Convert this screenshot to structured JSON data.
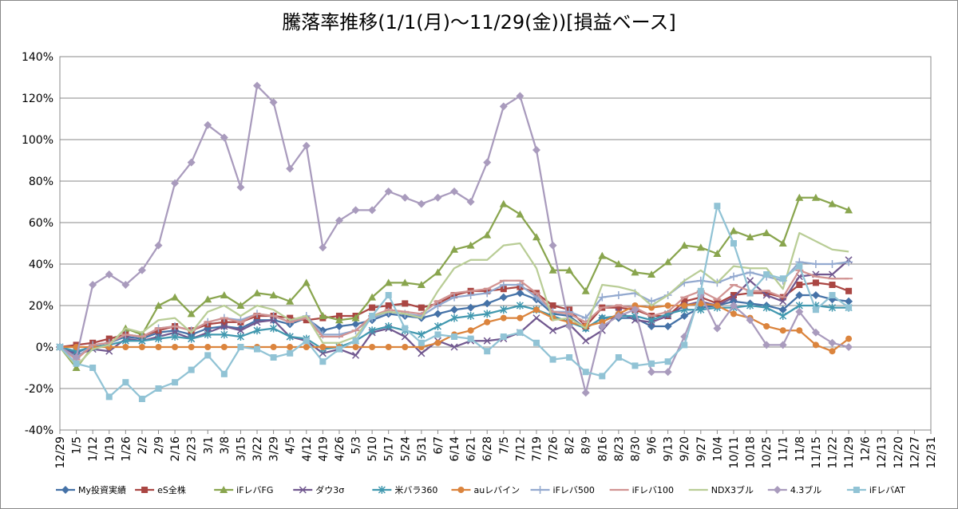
{
  "chart_data": {
    "type": "line",
    "title": "騰落率推移(1/1(月)～11/29(金))[損益ベース]",
    "categories": [
      "12/29",
      "1/5",
      "1/12",
      "1/19",
      "1/26",
      "2/2",
      "2/9",
      "2/16",
      "2/23",
      "3/1",
      "3/8",
      "3/15",
      "3/22",
      "3/29",
      "4/5",
      "4/12",
      "4/19",
      "4/26",
      "5/3",
      "5/10",
      "5/17",
      "5/24",
      "5/31",
      "6/7",
      "6/14",
      "6/21",
      "6/28",
      "7/5",
      "7/12",
      "7/19",
      "7/26",
      "8/2",
      "8/9",
      "8/16",
      "8/23",
      "8/30",
      "9/6",
      "9/13",
      "9/20",
      "9/27",
      "10/4",
      "10/11",
      "10/18",
      "10/25",
      "11/1",
      "11/8",
      "11/15",
      "11/22",
      "11/29",
      "12/6",
      "12/13",
      "12/20",
      "12/27",
      "12/31"
    ],
    "ylim": [
      -40,
      140
    ],
    "yticks": [
      {
        "value": -40,
        "label": "-40%"
      },
      {
        "value": -20,
        "label": "-20%"
      },
      {
        "value": 0,
        "label": "0%"
      },
      {
        "value": 20,
        "label": "20%"
      },
      {
        "value": 40,
        "label": "40%"
      },
      {
        "value": 60,
        "label": "60%"
      },
      {
        "value": 80,
        "label": "80%"
      },
      {
        "value": 100,
        "label": "100%"
      },
      {
        "value": 120,
        "label": "120%"
      },
      {
        "value": 140,
        "label": "140%"
      }
    ],
    "grid": true,
    "legend": "bottom",
    "series": [
      {
        "name": "My投資実績",
        "color": "#4572A7",
        "marker": "diamond",
        "values": [
          0,
          -3,
          1,
          2,
          5,
          4,
          7,
          8,
          6,
          9,
          10,
          9,
          13,
          13,
          11,
          14,
          8,
          10,
          11,
          13,
          16,
          15,
          14,
          16,
          18,
          19,
          21,
          24,
          26,
          23,
          16,
          15,
          9,
          14,
          14,
          14,
          10,
          10,
          15,
          19,
          20,
          22,
          21,
          20,
          18,
          25,
          25,
          23,
          22,
          null,
          null,
          null,
          null,
          null
        ]
      },
      {
        "name": "eS全株",
        "color": "#AA4643",
        "marker": "square",
        "values": [
          0,
          1,
          2,
          4,
          6,
          5,
          8,
          10,
          8,
          11,
          12,
          12,
          15,
          15,
          14,
          13,
          14,
          15,
          15,
          19,
          20,
          21,
          19,
          21,
          25,
          27,
          27,
          28,
          29,
          26,
          20,
          18,
          10,
          19,
          19,
          18,
          15,
          15,
          22,
          24,
          21,
          25,
          26,
          26,
          24,
          30,
          31,
          30,
          27,
          null,
          null,
          null,
          null,
          null
        ]
      },
      {
        "name": "iFレバFG",
        "color": "#89A54E",
        "marker": "triangle",
        "values": [
          0,
          -10,
          0,
          1,
          9,
          6,
          20,
          24,
          16,
          23,
          25,
          20,
          26,
          25,
          22,
          31,
          15,
          13,
          14,
          24,
          31,
          31,
          30,
          36,
          47,
          49,
          54,
          69,
          64,
          53,
          37,
          37,
          27,
          44,
          40,
          36,
          35,
          41,
          49,
          48,
          45,
          56,
          53,
          55,
          50,
          72,
          72,
          69,
          66,
          null,
          null,
          null,
          null,
          null
        ]
      },
      {
        "name": "ダウ3σ",
        "color": "#71588F",
        "marker": "x",
        "values": [
          0,
          -4,
          -1,
          -2,
          4,
          3,
          5,
          7,
          4,
          7,
          10,
          8,
          12,
          13,
          5,
          3,
          -3,
          -1,
          -4,
          7,
          9,
          5,
          -3,
          3,
          0,
          3,
          3,
          4,
          7,
          14,
          8,
          11,
          3,
          8,
          17,
          13,
          12,
          15,
          20,
          22,
          20,
          24,
          32,
          25,
          22,
          34,
          35,
          35,
          42,
          null,
          null,
          null,
          null,
          null
        ]
      },
      {
        "name": "米バラ360",
        "color": "#4198AF",
        "marker": "star",
        "values": [
          0,
          -2,
          0,
          1,
          3,
          3,
          4,
          5,
          4,
          6,
          6,
          5,
          8,
          9,
          5,
          4,
          -1,
          0,
          3,
          8,
          10,
          8,
          6,
          10,
          14,
          15,
          16,
          18,
          20,
          18,
          15,
          12,
          9,
          14,
          15,
          15,
          13,
          16,
          18,
          18,
          19,
          19,
          20,
          19,
          15,
          20,
          20,
          19,
          19,
          null,
          null,
          null,
          null,
          null
        ]
      },
      {
        "name": "auレバイン",
        "color": "#DB843D",
        "marker": "circle",
        "values": [
          0,
          0,
          0,
          0,
          0,
          0,
          0,
          0,
          0,
          0,
          0,
          0,
          0,
          0,
          0,
          0,
          0,
          0,
          0,
          0,
          0,
          0,
          0,
          2,
          6,
          8,
          12,
          14,
          14,
          18,
          14,
          12,
          10,
          12,
          16,
          20,
          19,
          20,
          20,
          21,
          20,
          16,
          14,
          10,
          8,
          8,
          1,
          -2,
          4,
          null,
          null,
          null,
          null,
          null
        ]
      },
      {
        "name": "iFレバ500",
        "color": "#93A9CF",
        "marker": "plus",
        "values": [
          0,
          -5,
          1,
          2,
          6,
          5,
          9,
          10,
          8,
          12,
          14,
          13,
          16,
          15,
          12,
          15,
          6,
          6,
          8,
          14,
          17,
          16,
          15,
          20,
          24,
          25,
          26,
          30,
          30,
          24,
          17,
          17,
          14,
          24,
          25,
          26,
          22,
          25,
          31,
          32,
          31,
          34,
          36,
          34,
          32,
          41,
          40,
          40,
          41,
          null,
          null,
          null,
          null,
          null
        ]
      },
      {
        "name": "iFレバ100",
        "color": "#D19392",
        "marker": "dash",
        "values": [
          0,
          -6,
          1,
          2,
          6,
          5,
          9,
          10,
          8,
          12,
          14,
          12,
          16,
          15,
          12,
          14,
          5,
          5,
          8,
          15,
          18,
          17,
          16,
          22,
          26,
          27,
          28,
          32,
          32,
          26,
          17,
          16,
          12,
          19,
          20,
          19,
          15,
          17,
          24,
          27,
          23,
          30,
          27,
          27,
          24,
          37,
          34,
          33,
          33,
          null,
          null,
          null,
          null,
          null
        ]
      },
      {
        "name": "NDX3ブル",
        "color": "#B9CD96",
        "marker": "none",
        "values": [
          0,
          -9,
          -1,
          1,
          9,
          7,
          13,
          14,
          7,
          17,
          20,
          15,
          20,
          18,
          13,
          15,
          2,
          2,
          5,
          15,
          17,
          16,
          14,
          27,
          38,
          42,
          42,
          49,
          50,
          38,
          13,
          14,
          9,
          30,
          29,
          27,
          20,
          25,
          32,
          37,
          31,
          39,
          38,
          38,
          28,
          55,
          51,
          47,
          46,
          null,
          null,
          null,
          null,
          null
        ]
      },
      {
        "name": "4.3ブル",
        "color": "#A99BBD",
        "marker": "diamond",
        "values": [
          0,
          -5,
          30,
          35,
          30,
          37,
          49,
          79,
          89,
          107,
          101,
          77,
          126,
          118,
          86,
          97,
          48,
          61,
          66,
          66,
          75,
          72,
          69,
          72,
          75,
          70,
          89,
          116,
          121,
          95,
          49,
          10,
          -22,
          10,
          15,
          18,
          -12,
          -12,
          5,
          25,
          9,
          20,
          13,
          1,
          1,
          17,
          7,
          2,
          0,
          null,
          null,
          null,
          null,
          null
        ]
      },
      {
        "name": "iFレバAT",
        "color": "#91C3D5",
        "marker": "square",
        "values": [
          0,
          -8,
          -10,
          -24,
          -17,
          -25,
          -20,
          -17,
          -11,
          -4,
          -13,
          0,
          -1,
          -5,
          -3,
          3,
          -7,
          -1,
          3,
          15,
          25,
          9,
          2,
          6,
          5,
          4,
          -2,
          5,
          7,
          2,
          -6,
          -5,
          -12,
          -14,
          -5,
          -9,
          -8,
          -7,
          1,
          27,
          68,
          50,
          26,
          35,
          33,
          39,
          18,
          25,
          19,
          null,
          null,
          null,
          null,
          null
        ]
      }
    ]
  }
}
